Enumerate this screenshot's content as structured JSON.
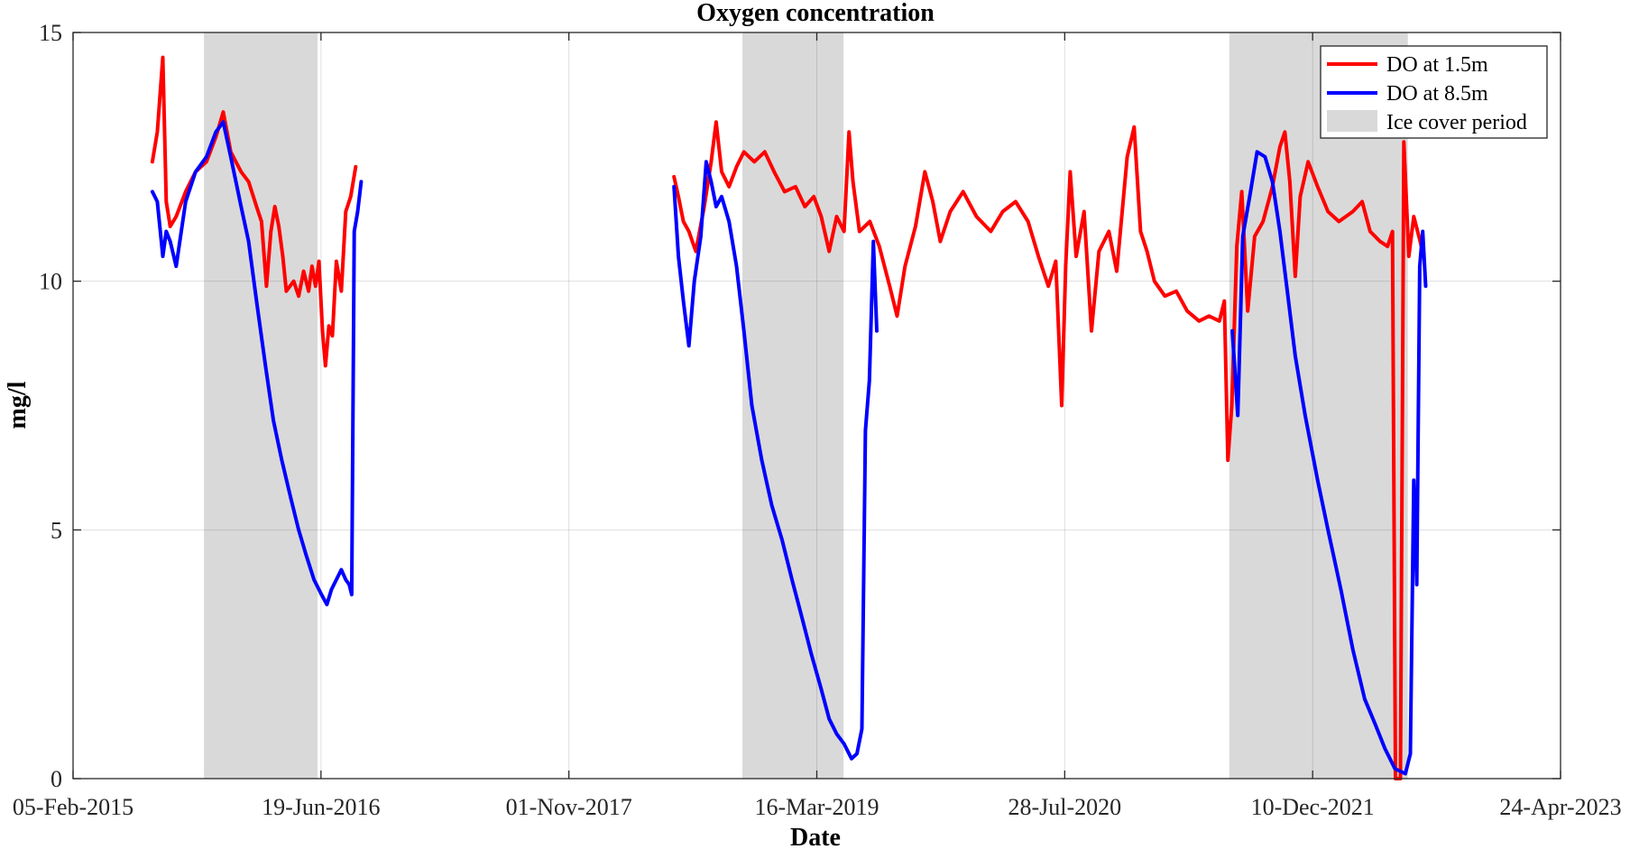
{
  "chart_data": {
    "type": "line",
    "title": "Oxygen concentration",
    "xlabel": "Date",
    "ylabel": "mg/l",
    "x_ticks": [
      "05-Feb-2015",
      "19-Jun-2016",
      "01-Nov-2017",
      "16-Mar-2019",
      "28-Jul-2020",
      "10-Dec-2021",
      "24-Apr-2023"
    ],
    "xlim": [
      "2015-02-05",
      "2023-04-24"
    ],
    "ylim": [
      0,
      15
    ],
    "y_ticks": [
      0,
      5,
      10,
      15
    ],
    "grid": true,
    "legend_position": "top-right",
    "ice_cover_label": "Ice cover period",
    "ice_cover_color": "#d9d9d9",
    "ice_cover_periods": [
      [
        "2015-10-27",
        "2016-06-12"
      ],
      [
        "2018-10-17",
        "2019-05-09"
      ],
      [
        "2021-06-25",
        "2022-06-20"
      ]
    ],
    "series": [
      {
        "name": "DO at 1.5m",
        "color": "#ff0000",
        "segments": [
          [
            [
              "2015-07-15",
              12.4
            ],
            [
              "2015-07-25",
              13.0
            ],
            [
              "2015-08-05",
              14.5
            ],
            [
              "2015-08-12",
              11.6
            ],
            [
              "2015-08-20",
              11.1
            ],
            [
              "2015-09-01",
              11.3
            ],
            [
              "2015-09-20",
              11.8
            ],
            [
              "2015-10-10",
              12.2
            ],
            [
              "2015-11-01",
              12.4
            ],
            [
              "2015-11-20",
              12.9
            ],
            [
              "2015-12-05",
              13.4
            ],
            [
              "2015-12-20",
              12.6
            ],
            [
              "2016-01-10",
              12.2
            ],
            [
              "2016-01-25",
              12.0
            ],
            [
              "2016-02-10",
              11.5
            ],
            [
              "2016-02-20",
              11.2
            ],
            [
              "2016-03-01",
              9.9
            ],
            [
              "2016-03-10",
              11.0
            ],
            [
              "2016-03-18",
              11.5
            ],
            [
              "2016-03-26",
              11.1
            ],
            [
              "2016-04-03",
              10.5
            ],
            [
              "2016-04-10",
              9.8
            ],
            [
              "2016-04-25",
              10.0
            ],
            [
              "2016-05-05",
              9.7
            ],
            [
              "2016-05-15",
              10.2
            ],
            [
              "2016-05-25",
              9.8
            ],
            [
              "2016-06-01",
              10.3
            ],
            [
              "2016-06-08",
              9.9
            ],
            [
              "2016-06-15",
              10.4
            ],
            [
              "2016-06-22",
              9.0
            ],
            [
              "2016-06-28",
              8.3
            ],
            [
              "2016-07-05",
              9.1
            ],
            [
              "2016-07-12",
              8.9
            ],
            [
              "2016-07-20",
              10.4
            ],
            [
              "2016-07-30",
              9.8
            ],
            [
              "2016-08-08",
              11.4
            ],
            [
              "2016-08-18",
              11.7
            ],
            [
              "2016-08-28",
              12.3
            ]
          ],
          [
            [
              "2018-06-01",
              12.1
            ],
            [
              "2018-06-10",
              11.7
            ],
            [
              "2018-06-20",
              11.2
            ],
            [
              "2018-07-01",
              11.0
            ],
            [
              "2018-07-15",
              10.6
            ],
            [
              "2018-08-01",
              11.5
            ],
            [
              "2018-08-15",
              12.4
            ],
            [
              "2018-08-25",
              13.2
            ],
            [
              "2018-09-05",
              12.2
            ],
            [
              "2018-09-20",
              11.9
            ],
            [
              "2018-10-05",
              12.3
            ],
            [
              "2018-10-20",
              12.6
            ],
            [
              "2018-11-10",
              12.4
            ],
            [
              "2018-12-01",
              12.6
            ],
            [
              "2018-12-20",
              12.2
            ],
            [
              "2019-01-10",
              11.8
            ],
            [
              "2019-02-01",
              11.9
            ],
            [
              "2019-02-20",
              11.5
            ],
            [
              "2019-03-10",
              11.7
            ],
            [
              "2019-03-25",
              11.3
            ],
            [
              "2019-04-10",
              10.6
            ],
            [
              "2019-04-25",
              11.3
            ],
            [
              "2019-05-10",
              11.0
            ],
            [
              "2019-05-20",
              13.0
            ],
            [
              "2019-05-28",
              12.0
            ],
            [
              "2019-06-10",
              11.0
            ],
            [
              "2019-07-01",
              11.2
            ],
            [
              "2019-07-20",
              10.7
            ],
            [
              "2019-08-10",
              9.9
            ],
            [
              "2019-08-25",
              9.3
            ],
            [
              "2019-09-10",
              10.3
            ],
            [
              "2019-10-01",
              11.1
            ],
            [
              "2019-10-20",
              12.2
            ],
            [
              "2019-11-05",
              11.6
            ],
            [
              "2019-11-20",
              10.8
            ],
            [
              "2019-12-10",
              11.4
            ],
            [
              "2020-01-05",
              11.8
            ],
            [
              "2020-02-01",
              11.3
            ],
            [
              "2020-03-01",
              11.0
            ],
            [
              "2020-03-25",
              11.4
            ],
            [
              "2020-04-20",
              11.6
            ],
            [
              "2020-05-15",
              11.2
            ],
            [
              "2020-06-05",
              10.5
            ],
            [
              "2020-06-25",
              9.9
            ],
            [
              "2020-07-10",
              10.4
            ],
            [
              "2020-07-22",
              7.5
            ],
            [
              "2020-07-30",
              10.3
            ],
            [
              "2020-08-08",
              12.2
            ],
            [
              "2020-08-20",
              10.5
            ],
            [
              "2020-09-05",
              11.4
            ],
            [
              "2020-09-20",
              9.0
            ],
            [
              "2020-10-05",
              10.6
            ],
            [
              "2020-10-25",
              11.0
            ],
            [
              "2020-11-10",
              10.2
            ],
            [
              "2020-12-01",
              12.5
            ],
            [
              "2020-12-15",
              13.1
            ],
            [
              "2020-12-28",
              11.0
            ],
            [
              "2021-01-10",
              10.6
            ],
            [
              "2021-01-25",
              10.0
            ],
            [
              "2021-02-15",
              9.7
            ],
            [
              "2021-03-10",
              9.8
            ],
            [
              "2021-04-01",
              9.4
            ],
            [
              "2021-04-25",
              9.2
            ],
            [
              "2021-05-15",
              9.3
            ],
            [
              "2021-06-05",
              9.2
            ],
            [
              "2021-06-15",
              9.6
            ],
            [
              "2021-06-22",
              6.4
            ],
            [
              "2021-06-30",
              7.5
            ],
            [
              "2021-07-10",
              10.7
            ],
            [
              "2021-07-20",
              11.8
            ],
            [
              "2021-08-01",
              9.4
            ],
            [
              "2021-08-15",
              10.9
            ],
            [
              "2021-09-01",
              11.2
            ],
            [
              "2021-09-20",
              11.9
            ],
            [
              "2021-10-05",
              12.7
            ],
            [
              "2021-10-15",
              13.0
            ],
            [
              "2021-10-25",
              12.0
            ],
            [
              "2021-11-05",
              10.1
            ],
            [
              "2021-11-15",
              11.7
            ],
            [
              "2021-12-01",
              12.4
            ],
            [
              "2021-12-20",
              11.9
            ],
            [
              "2022-01-10",
              11.4
            ],
            [
              "2022-02-01",
              11.2
            ],
            [
              "2022-03-01",
              11.4
            ],
            [
              "2022-03-20",
              11.6
            ],
            [
              "2022-04-05",
              11.0
            ],
            [
              "2022-04-25",
              10.8
            ],
            [
              "2022-05-10",
              10.7
            ],
            [
              "2022-05-20",
              11.0
            ],
            [
              "2022-05-26",
              0.0
            ],
            [
              "2022-06-05",
              0.0
            ],
            [
              "2022-06-12",
              12.8
            ],
            [
              "2022-06-22",
              10.5
            ],
            [
              "2022-07-02",
              11.3
            ],
            [
              "2022-07-15",
              10.8
            ],
            [
              "2022-07-22",
              10.5
            ]
          ]
        ]
      },
      {
        "name": "DO at 8.5m",
        "color": "#0000ff",
        "segments": [
          [
            [
              "2015-07-15",
              11.8
            ],
            [
              "2015-07-25",
              11.6
            ],
            [
              "2015-08-05",
              10.5
            ],
            [
              "2015-08-12",
              11.0
            ],
            [
              "2015-08-20",
              10.8
            ],
            [
              "2015-09-01",
              10.3
            ],
            [
              "2015-09-20",
              11.6
            ],
            [
              "2015-10-10",
              12.2
            ],
            [
              "2015-11-01",
              12.5
            ],
            [
              "2015-11-20",
              13.0
            ],
            [
              "2015-12-05",
              13.2
            ],
            [
              "2015-12-20",
              12.5
            ],
            [
              "2016-01-10",
              11.5
            ],
            [
              "2016-01-25",
              10.8
            ],
            [
              "2016-02-10",
              9.6
            ],
            [
              "2016-02-28",
              8.3
            ],
            [
              "2016-03-15",
              7.2
            ],
            [
              "2016-04-01",
              6.4
            ],
            [
              "2016-04-20",
              5.6
            ],
            [
              "2016-05-05",
              5.0
            ],
            [
              "2016-05-20",
              4.5
            ],
            [
              "2016-06-05",
              4.0
            ],
            [
              "2016-06-20",
              3.7
            ],
            [
              "2016-07-01",
              3.5
            ],
            [
              "2016-07-10",
              3.8
            ],
            [
              "2016-07-20",
              4.0
            ],
            [
              "2016-07-30",
              4.2
            ],
            [
              "2016-08-08",
              4.0
            ],
            [
              "2016-08-15",
              3.9
            ],
            [
              "2016-08-20",
              3.7
            ],
            [
              "2016-08-25",
              11.0
            ],
            [
              "2016-09-01",
              11.4
            ],
            [
              "2016-09-08",
              12.0
            ]
          ],
          [
            [
              "2018-06-01",
              11.9
            ],
            [
              "2018-06-10",
              10.5
            ],
            [
              "2018-06-20",
              9.6
            ],
            [
              "2018-07-01",
              8.7
            ],
            [
              "2018-07-12",
              10.0
            ],
            [
              "2018-07-25",
              10.9
            ],
            [
              "2018-08-05",
              12.4
            ],
            [
              "2018-08-15",
              12.0
            ],
            [
              "2018-08-25",
              11.5
            ],
            [
              "2018-09-05",
              11.7
            ],
            [
              "2018-09-20",
              11.2
            ],
            [
              "2018-10-05",
              10.3
            ],
            [
              "2018-10-20",
              9.0
            ],
            [
              "2018-11-05",
              7.5
            ],
            [
              "2018-11-25",
              6.4
            ],
            [
              "2018-12-15",
              5.5
            ],
            [
              "2019-01-05",
              4.8
            ],
            [
              "2019-01-25",
              4.0
            ],
            [
              "2019-02-15",
              3.2
            ],
            [
              "2019-03-05",
              2.5
            ],
            [
              "2019-03-25",
              1.8
            ],
            [
              "2019-04-10",
              1.2
            ],
            [
              "2019-04-25",
              0.9
            ],
            [
              "2019-05-10",
              0.7
            ],
            [
              "2019-05-25",
              0.4
            ],
            [
              "2019-06-05",
              0.5
            ],
            [
              "2019-06-15",
              1.0
            ],
            [
              "2019-06-22",
              7.0
            ],
            [
              "2019-06-30",
              8.0
            ],
            [
              "2019-07-08",
              10.8
            ],
            [
              "2019-07-15",
              9.0
            ]
          ],
          [
            [
              "2021-07-01",
              9.0
            ],
            [
              "2021-07-12",
              7.3
            ],
            [
              "2021-07-22",
              10.9
            ],
            [
              "2021-08-05",
              11.7
            ],
            [
              "2021-08-20",
              12.6
            ],
            [
              "2021-09-05",
              12.5
            ],
            [
              "2021-09-20",
              12.0
            ],
            [
              "2021-10-05",
              11.0
            ],
            [
              "2021-10-20",
              9.8
            ],
            [
              "2021-11-05",
              8.5
            ],
            [
              "2021-11-25",
              7.3
            ],
            [
              "2021-12-20",
              6.0
            ],
            [
              "2022-01-10",
              5.0
            ],
            [
              "2022-02-05",
              3.8
            ],
            [
              "2022-03-01",
              2.6
            ],
            [
              "2022-03-25",
              1.6
            ],
            [
              "2022-04-15",
              1.1
            ],
            [
              "2022-05-05",
              0.6
            ],
            [
              "2022-05-25",
              0.2
            ],
            [
              "2022-06-15",
              0.1
            ],
            [
              "2022-06-25",
              0.5
            ],
            [
              "2022-07-02",
              6.0
            ],
            [
              "2022-07-08",
              3.9
            ],
            [
              "2022-07-14",
              10.3
            ],
            [
              "2022-07-20",
              11.0
            ],
            [
              "2022-07-26",
              9.9
            ]
          ]
        ]
      }
    ]
  }
}
